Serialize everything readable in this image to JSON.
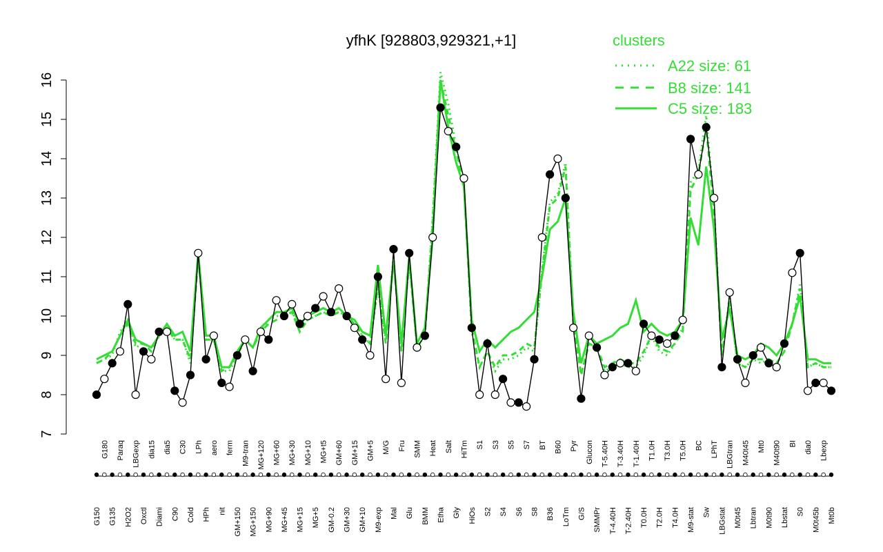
{
  "chart_data": {
    "type": "line",
    "title": "yfhK [928803,929321,+1]",
    "xlabel": "",
    "ylabel": "",
    "ylim": [
      7,
      16
    ],
    "yticks": [
      7,
      8,
      9,
      10,
      11,
      12,
      13,
      14,
      15,
      16
    ],
    "grid": false,
    "x_tick_labels": [
      "G150",
      "G180",
      "G135",
      "Paraq",
      "H2O2",
      "LBGexp",
      "Oxctl",
      "dia15",
      "Diami",
      "dia5",
      "C90",
      "C30",
      "Cold",
      "LPh",
      "HPh",
      "aero",
      "nit",
      "ferm",
      "GM+150",
      "M9-tran",
      "MG+150",
      "MG+120",
      "MG+90",
      "MG+60",
      "MG+45",
      "MG+30",
      "MG+15",
      "MG+10",
      "MG+5",
      "MG+t5",
      "GM-0.2",
      "GM+60",
      "GM+30",
      "GM+15",
      "GM+10",
      "GM+5",
      "M9-exp",
      "M/G",
      "Mal",
      "Fru",
      "Glu",
      "SMM",
      "BMM",
      "Heat",
      "Etha",
      "Salt",
      "Gly",
      "HiTm",
      "HiOs",
      "S1",
      "S2",
      "S3",
      "S4",
      "S5",
      "S6",
      "S7",
      "S8",
      "BT",
      "B36",
      "B60",
      "LoTm",
      "Pyr",
      "G/S",
      "Glucon",
      "SMMPr",
      "T-5.40H",
      "T-4.40H",
      "T-3.40H",
      "T-2.40H",
      "T-1.40H",
      "T0.0H",
      "T1.0H",
      "T2.0H",
      "T3.0H",
      "T4.0H",
      "T5.0H",
      "M9-stat",
      "BC",
      "Sw",
      "LPhT",
      "LBGstat",
      "LBGtran",
      "M0t45",
      "M40t45",
      "Lbtran",
      "Mt0",
      "M0t90",
      "M40t90",
      "Lbstat",
      "BI",
      "S0",
      "dia0",
      "M0t45b",
      "Lbexp",
      "Mt0b"
    ],
    "series": [
      {
        "name": "A22 size: 61",
        "style": "dotted",
        "color": "#33dd33",
        "values": [
          8.8,
          8.9,
          9.0,
          9.6,
          9.9,
          9.2,
          9.3,
          9.2,
          9.5,
          9.7,
          9.4,
          9.4,
          8.8,
          11.6,
          9.4,
          9.4,
          8.6,
          8.6,
          9.0,
          9.4,
          9.2,
          9.6,
          9.9,
          10.0,
          10.0,
          10.1,
          9.7,
          9.9,
          10.0,
          10.1,
          10.0,
          10.1,
          10.0,
          9.8,
          9.5,
          9.3,
          10.7,
          9.4,
          11.5,
          9.1,
          11.4,
          9.2,
          9.5,
          12.5,
          16.2,
          15.4,
          14.3,
          13.4,
          9.6,
          8.7,
          9.1,
          8.6,
          8.9,
          8.9,
          9.0,
          9.2,
          9.1,
          11.2,
          12.9,
          13.1,
          13.9,
          9.9,
          8.5,
          9.3,
          9.2,
          8.6,
          8.7,
          8.8,
          8.7,
          8.7,
          9.0,
          9.5,
          9.1,
          9.0,
          9.3,
          9.7,
          13.4,
          13.7,
          15.1,
          12.8,
          9.0,
          10.5,
          8.8,
          8.7,
          8.9,
          8.8,
          8.9,
          8.8,
          9.1,
          9.8,
          10.8,
          8.7,
          8.8,
          8.7,
          8.7
        ]
      },
      {
        "name": "B8 size: 141",
        "style": "dashed",
        "color": "#33dd33",
        "values": [
          8.8,
          8.9,
          9.1,
          9.5,
          9.8,
          9.3,
          9.3,
          9.1,
          9.5,
          9.7,
          9.4,
          9.4,
          8.9,
          11.5,
          9.4,
          9.4,
          8.6,
          8.7,
          9.0,
          9.4,
          9.2,
          9.6,
          9.8,
          9.9,
          10.0,
          10.1,
          9.6,
          9.9,
          10.0,
          10.1,
          10.0,
          10.1,
          10.0,
          9.8,
          9.5,
          9.3,
          10.8,
          9.3,
          11.4,
          9.1,
          11.4,
          9.2,
          9.5,
          12.4,
          16.0,
          15.1,
          14.2,
          13.3,
          9.7,
          8.7,
          9.1,
          8.7,
          9.0,
          9.0,
          9.1,
          9.3,
          9.2,
          11.1,
          12.8,
          13.0,
          13.8,
          9.8,
          8.5,
          9.3,
          9.2,
          8.7,
          8.8,
          8.9,
          8.8,
          8.8,
          9.1,
          9.5,
          9.2,
          9.1,
          9.3,
          9.6,
          13.2,
          13.6,
          14.8,
          12.6,
          9.0,
          10.4,
          8.8,
          8.7,
          8.9,
          8.9,
          8.9,
          8.8,
          9.1,
          9.8,
          10.7,
          8.7,
          8.8,
          8.7,
          8.7
        ]
      },
      {
        "name": "C5 size: 183",
        "style": "solid",
        "color": "#33dd33",
        "values": [
          8.9,
          9.0,
          9.1,
          9.5,
          9.9,
          9.4,
          9.3,
          9.2,
          9.5,
          9.8,
          9.5,
          9.6,
          9.1,
          11.6,
          9.5,
          9.5,
          8.7,
          8.7,
          9.1,
          9.4,
          9.2,
          9.7,
          9.9,
          10.1,
          10.1,
          10.2,
          9.8,
          10.0,
          10.1,
          10.2,
          10.1,
          10.2,
          10.0,
          9.9,
          9.6,
          9.5,
          11.3,
          9.5,
          11.4,
          9.3,
          11.5,
          9.3,
          9.7,
          12.0,
          16.0,
          14.8,
          13.9,
          13.3,
          9.9,
          9.1,
          9.4,
          9.2,
          9.4,
          9.6,
          9.7,
          9.9,
          10.1,
          11.0,
          12.2,
          12.4,
          13.0,
          10.1,
          8.8,
          9.5,
          9.3,
          9.4,
          9.5,
          9.7,
          9.8,
          10.4,
          9.6,
          9.8,
          9.6,
          9.5,
          9.6,
          9.9,
          12.5,
          11.8,
          13.8,
          12.2,
          9.4,
          10.2,
          9.0,
          8.9,
          9.0,
          9.3,
          9.2,
          9.0,
          9.3,
          9.8,
          10.5,
          8.9,
          8.9,
          8.8,
          8.8
        ]
      },
      {
        "name": "",
        "style": "points",
        "color": "#000000",
        "values": [
          8.0,
          8.4,
          8.8,
          9.1,
          10.3,
          8.0,
          9.1,
          8.9,
          9.6,
          9.6,
          8.1,
          7.8,
          8.5,
          11.6,
          8.9,
          9.5,
          8.3,
          8.2,
          9.0,
          9.4,
          8.6,
          9.6,
          9.4,
          10.4,
          10.0,
          10.3,
          9.8,
          10.0,
          10.2,
          10.5,
          10.1,
          10.7,
          10.0,
          9.7,
          9.4,
          9.0,
          11.0,
          8.4,
          11.7,
          8.3,
          11.6,
          9.2,
          9.5,
          12.0,
          15.3,
          14.7,
          14.3,
          13.5,
          9.7,
          8.0,
          9.3,
          8.0,
          8.4,
          7.8,
          7.8,
          7.7,
          8.9,
          12.0,
          13.6,
          14.0,
          13.0,
          9.7,
          7.9,
          9.5,
          9.2,
          8.5,
          8.7,
          8.8,
          8.8,
          8.6,
          9.8,
          9.5,
          9.4,
          9.3,
          9.5,
          9.9,
          14.5,
          13.6,
          14.8,
          13.0,
          8.7,
          10.6,
          8.9,
          8.3,
          9.0,
          9.2,
          8.8,
          8.7,
          9.3,
          11.1,
          11.6,
          8.1,
          8.3,
          8.3,
          8.1
        ]
      }
    ],
    "legend": {
      "title": "clusters",
      "position": "top-right"
    }
  }
}
